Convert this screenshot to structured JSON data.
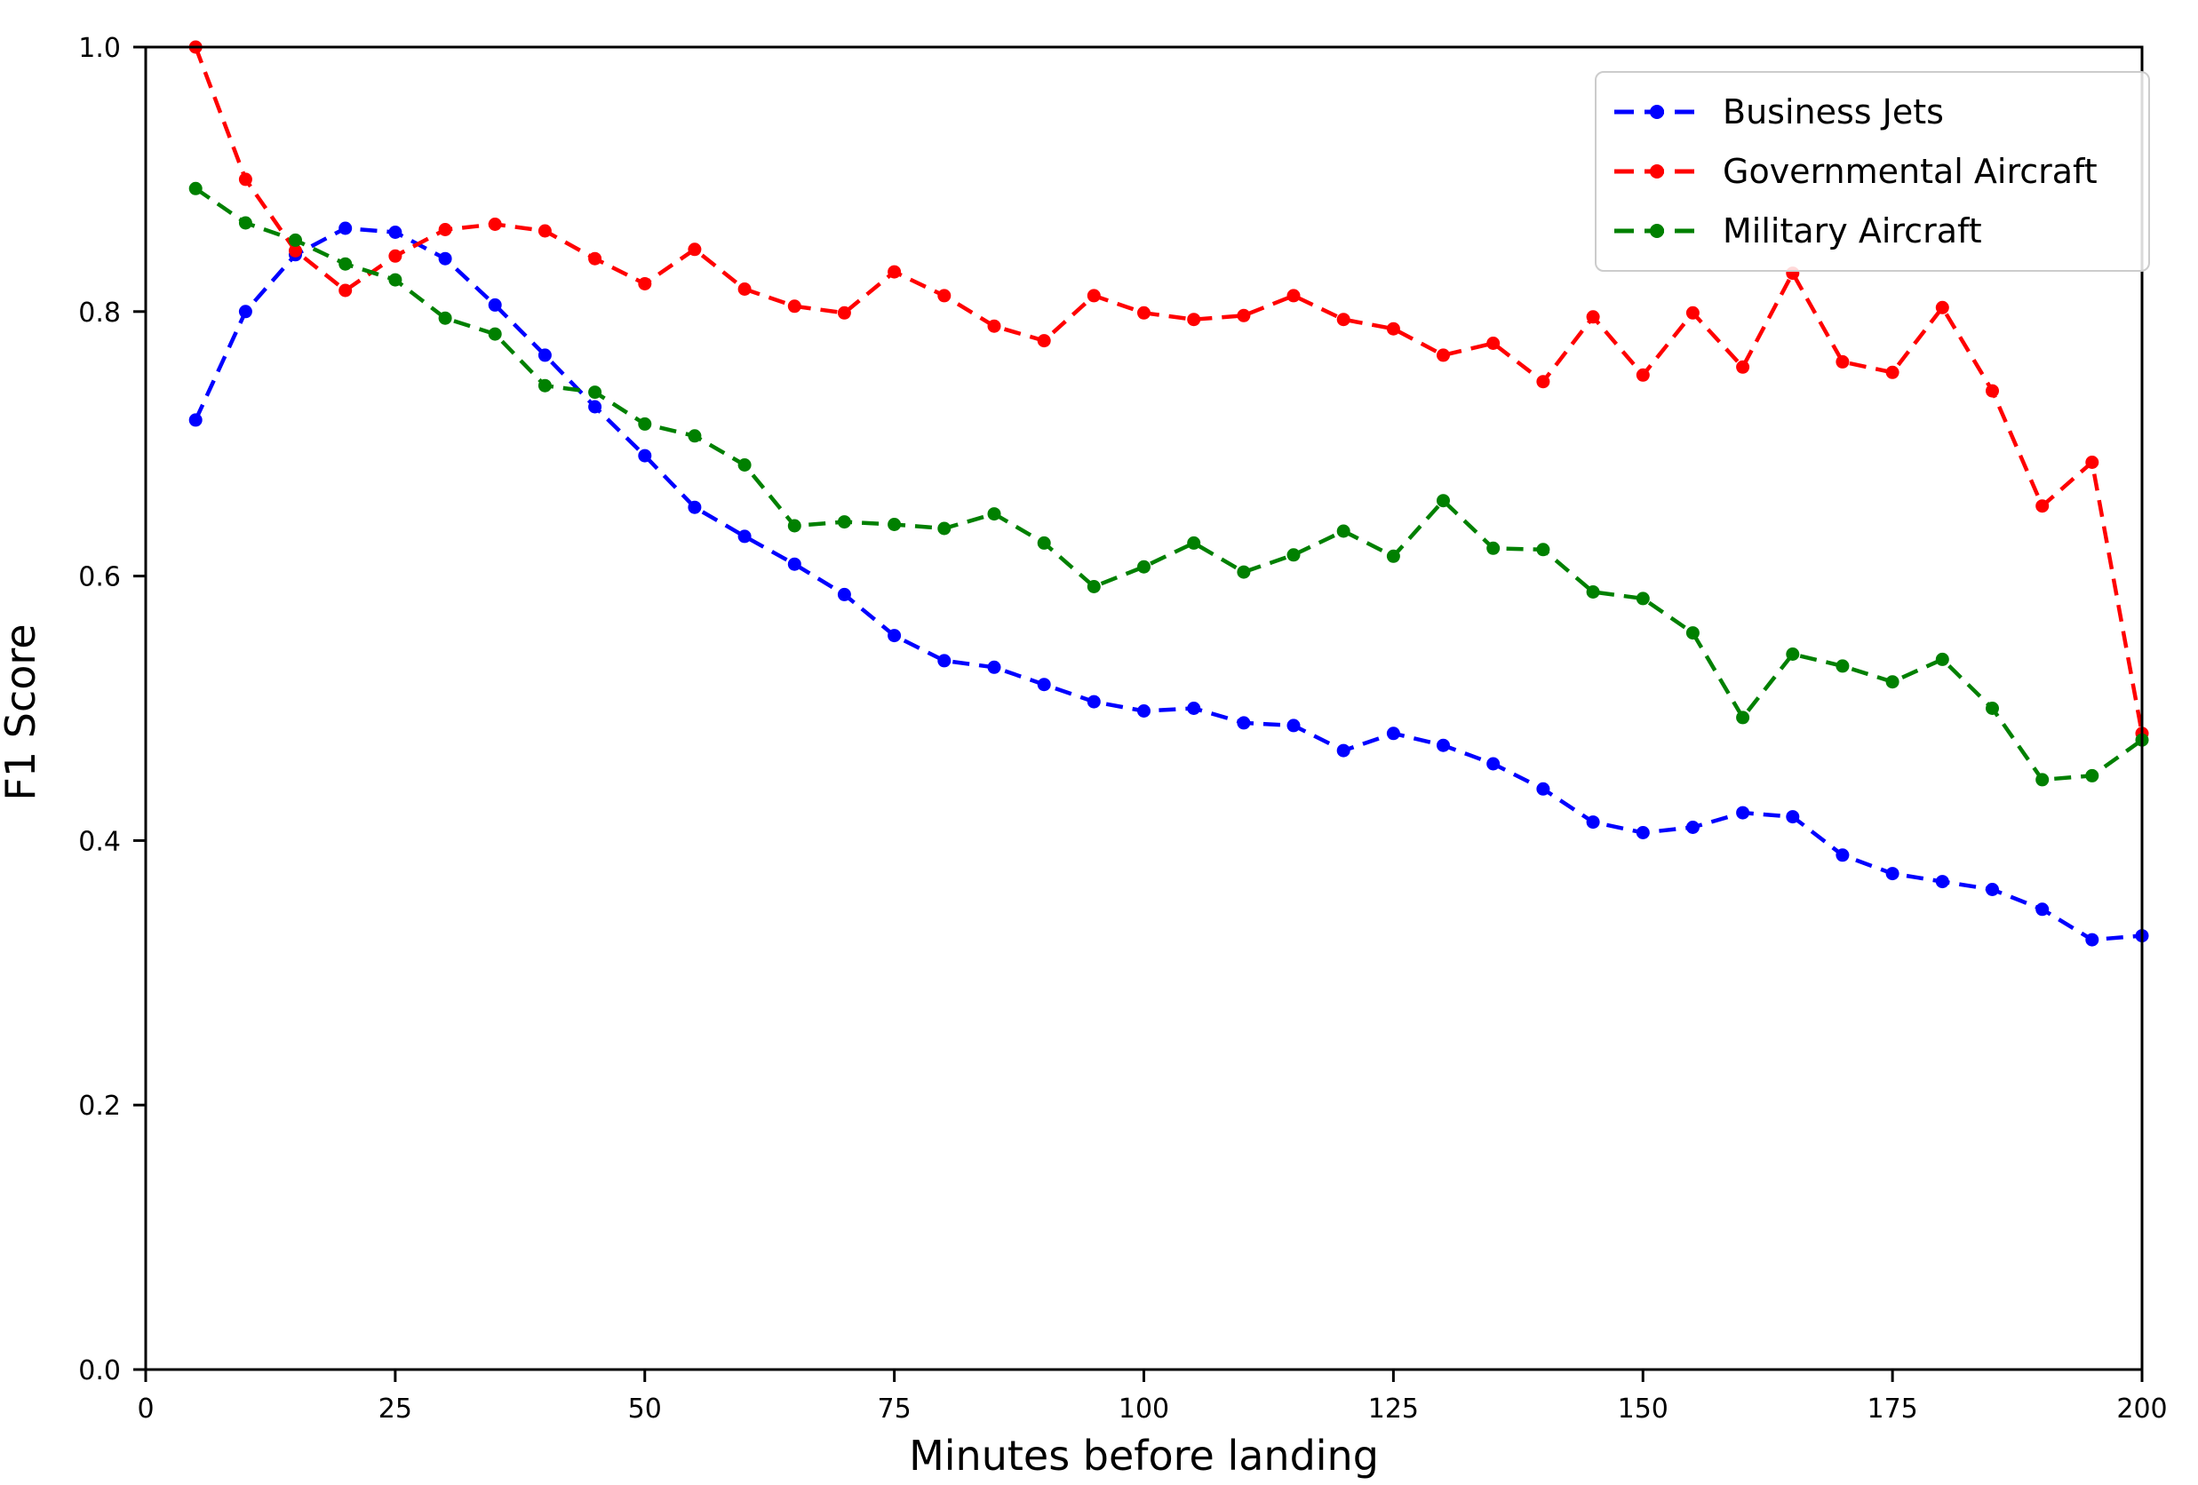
{
  "chart_data": {
    "type": "line",
    "title": "",
    "xlabel": "Minutes before landing",
    "ylabel": "F1 Score",
    "xlim": [
      0,
      200
    ],
    "ylim": [
      0.0,
      1.0
    ],
    "x_tick_labels": [
      "0",
      "25",
      "50",
      "75",
      "100",
      "125",
      "150",
      "175",
      "200"
    ],
    "x_tick_values": [
      0,
      25,
      50,
      75,
      100,
      125,
      150,
      175,
      200
    ],
    "y_tick_labels": [
      "0.0",
      "0.2",
      "0.4",
      "0.6",
      "0.8",
      "1.0"
    ],
    "y_tick_values": [
      0.0,
      0.2,
      0.4,
      0.6,
      0.8,
      1.0
    ],
    "grid": false,
    "legend_position": "upper right",
    "line_style": "dashed",
    "marker": "circle",
    "x": [
      5,
      10,
      15,
      20,
      25,
      30,
      35,
      40,
      45,
      50,
      55,
      60,
      65,
      70,
      75,
      80,
      85,
      90,
      95,
      100,
      105,
      110,
      115,
      120,
      125,
      130,
      135,
      140,
      145,
      150,
      155,
      160,
      165,
      170,
      175,
      180,
      185,
      190,
      195,
      200
    ],
    "series": [
      {
        "name": "Business Jets",
        "color": "#0000FF",
        "values": [
          0.718,
          0.8,
          0.843,
          0.863,
          0.86,
          0.84,
          0.805,
          0.767,
          0.728,
          0.691,
          0.652,
          0.63,
          0.609,
          0.586,
          0.555,
          0.536,
          0.531,
          0.518,
          0.505,
          0.498,
          0.5,
          0.489,
          0.487,
          0.468,
          0.481,
          0.472,
          0.458,
          0.439,
          0.414,
          0.406,
          0.41,
          0.421,
          0.418,
          0.389,
          0.375,
          0.369,
          0.363,
          0.348,
          0.325,
          0.328
        ]
      },
      {
        "name": "Governmental Aircraft",
        "color": "#FF0000",
        "values": [
          1.0,
          0.9,
          0.846,
          0.816,
          0.842,
          0.862,
          0.866,
          0.861,
          0.84,
          0.821,
          0.847,
          0.817,
          0.804,
          0.799,
          0.83,
          0.812,
          0.789,
          0.778,
          0.812,
          0.799,
          0.794,
          0.797,
          0.812,
          0.794,
          0.787,
          0.767,
          0.776,
          0.747,
          0.796,
          0.752,
          0.799,
          0.758,
          0.829,
          0.762,
          0.754,
          0.803,
          0.74,
          0.653,
          0.686,
          0.481
        ]
      },
      {
        "name": "Military Aircraft",
        "color": "#008000",
        "values": [
          0.893,
          0.867,
          0.854,
          0.836,
          0.824,
          0.795,
          0.783,
          0.744,
          0.739,
          0.715,
          0.706,
          0.684,
          0.638,
          0.641,
          0.639,
          0.636,
          0.647,
          0.625,
          0.592,
          0.607,
          0.625,
          0.603,
          0.616,
          0.634,
          0.615,
          0.657,
          0.621,
          0.62,
          0.588,
          0.583,
          0.557,
          0.493,
          0.541,
          0.532,
          0.52,
          0.537,
          0.5,
          0.446,
          0.449,
          0.476
        ]
      }
    ],
    "axis_color": "#000000",
    "legend_border_color": "#CCCCCC"
  }
}
